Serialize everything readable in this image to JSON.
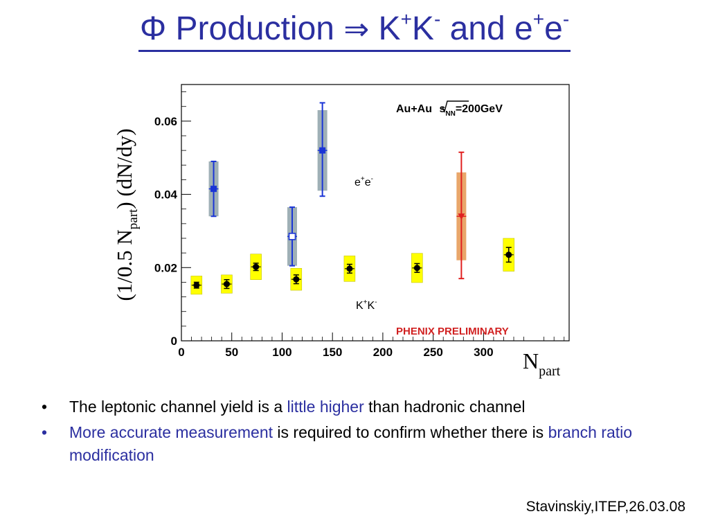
{
  "title": {
    "phi": "Φ",
    "production": "Production",
    "arrow": "⇒",
    "k1": "K",
    "k1_sup": "+",
    "k2": "K",
    "k2_sup": "-",
    "and": "and",
    "e1": "e",
    "e1_sup": "+",
    "e2": "e",
    "e2_sup": "-"
  },
  "bullets": [
    {
      "parts": [
        "The leptonic channel yield is a ",
        "little higher",
        " than hadronic channel"
      ]
    },
    {
      "parts": [
        "More accurate measurement",
        " is required to confirm whether there is ",
        "branch ratio modification"
      ]
    }
  ],
  "footer": "Stavinskiy,ITEP,26.03.08",
  "colors": {
    "title": "#2b2fa0",
    "highlight": "#2b2fa0",
    "kk_point": "#000000",
    "kk_box": "#ffff00",
    "ee_point": "#1a34d6",
    "ee_box": "#9fb0b6",
    "ee_red_point": "#e02020",
    "ee_red_box": "#e9a66a",
    "phenix": "#d02020"
  },
  "chart_data": {
    "type": "scatter",
    "xlim": [
      0,
      385
    ],
    "ylim": [
      0,
      0.07
    ],
    "xticks": [
      0,
      50,
      100,
      150,
      200,
      250,
      300
    ],
    "yticks": [
      0,
      0.02,
      0.04,
      0.06
    ],
    "xtick_labels": [
      "0",
      "50",
      "100",
      "150",
      "200",
      "250",
      "300"
    ],
    "ytick_labels": [
      "0",
      "0.02",
      "0.04",
      "0.06"
    ],
    "ylabel_parts": {
      "a": "(1/0.5 N",
      "sub": "part",
      "b": ") (dN/dy)"
    },
    "xlabel_parts": {
      "main": "N",
      "sub": "part"
    },
    "annotation_energy": {
      "a": "Au+Au ",
      "s": "s",
      "sub": "NN",
      "b": "=200GeV"
    },
    "annotation_phenix": "PHENIX PRELIMINARY",
    "label_ee": {
      "base": "e",
      "sup1": "+",
      "base2": "e",
      "sup2": "-"
    },
    "label_kk": {
      "base": "K",
      "sup1": "+",
      "base2": "K",
      "sup2": "-"
    },
    "series": [
      {
        "name": "K+K-",
        "marker": "circle",
        "points": [
          {
            "x": 15,
            "y": 0.0152,
            "err": 0.0008,
            "sys": 0.0025
          },
          {
            "x": 45,
            "y": 0.0155,
            "err": 0.0012,
            "sys": 0.0025
          },
          {
            "x": 74,
            "y": 0.0202,
            "err": 0.001,
            "sys": 0.0035
          },
          {
            "x": 114,
            "y": 0.0168,
            "err": 0.0012,
            "sys": 0.003
          },
          {
            "x": 167,
            "y": 0.0197,
            "err": 0.0012,
            "sys": 0.0035
          },
          {
            "x": 234,
            "y": 0.0199,
            "err": 0.0012,
            "sys": 0.004
          },
          {
            "x": 325,
            "y": 0.0235,
            "err": 0.002,
            "sys": 0.0045
          }
        ]
      },
      {
        "name": "e+e-",
        "marker": "square",
        "points": [
          {
            "x": 32,
            "y": 0.0415,
            "err_lo": 0.0075,
            "err_hi": 0.0075,
            "sys": 0.0075,
            "style": "filled"
          },
          {
            "x": 110,
            "y": 0.0285,
            "err_lo": 0.008,
            "err_hi": 0.008,
            "sys": 0.008,
            "style": "open"
          },
          {
            "x": 140,
            "y": 0.052,
            "err_lo": 0.0125,
            "err_hi": 0.013,
            "sys": 0.011,
            "style": "filled"
          },
          {
            "x": 278,
            "y": 0.034,
            "err_lo": 0.017,
            "err_hi": 0.0175,
            "sys": 0.012,
            "style": "red"
          }
        ]
      }
    ]
  }
}
